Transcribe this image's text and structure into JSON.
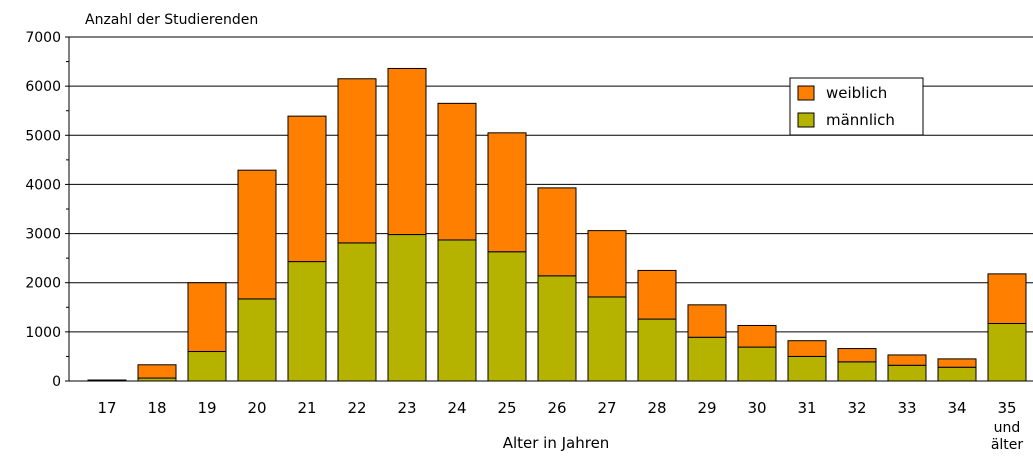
{
  "chart_data": {
    "type": "bar",
    "stacked": true,
    "title": "Anzahl der Studierenden",
    "xlabel": "Alter in Jahren",
    "ylabel": "",
    "ylim": [
      0,
      7000
    ],
    "yticks": [
      0,
      1000,
      2000,
      3000,
      4000,
      5000,
      6000,
      7000
    ],
    "grid": true,
    "legend_position": "top-right",
    "categories": [
      "17",
      "18",
      "19",
      "20",
      "21",
      "22",
      "23",
      "24",
      "25",
      "26",
      "27",
      "28",
      "29",
      "30",
      "31",
      "32",
      "33",
      "34",
      "35"
    ],
    "last_category_extra_lines": [
      "und",
      "älter"
    ],
    "series": [
      {
        "name": "männlich",
        "color": "#b5b300",
        "values": [
          10,
          60,
          600,
          1670,
          2430,
          2810,
          2980,
          2870,
          2630,
          2140,
          1710,
          1260,
          890,
          690,
          500,
          390,
          320,
          280,
          1170
        ]
      },
      {
        "name": "weiblich",
        "color": "#ff8000",
        "values": [
          10,
          270,
          1400,
          2620,
          2960,
          3340,
          3380,
          2780,
          2420,
          1790,
          1350,
          990,
          660,
          440,
          320,
          270,
          210,
          170,
          1010
        ]
      }
    ],
    "legend_order": [
      "weiblich",
      "männlich"
    ]
  }
}
